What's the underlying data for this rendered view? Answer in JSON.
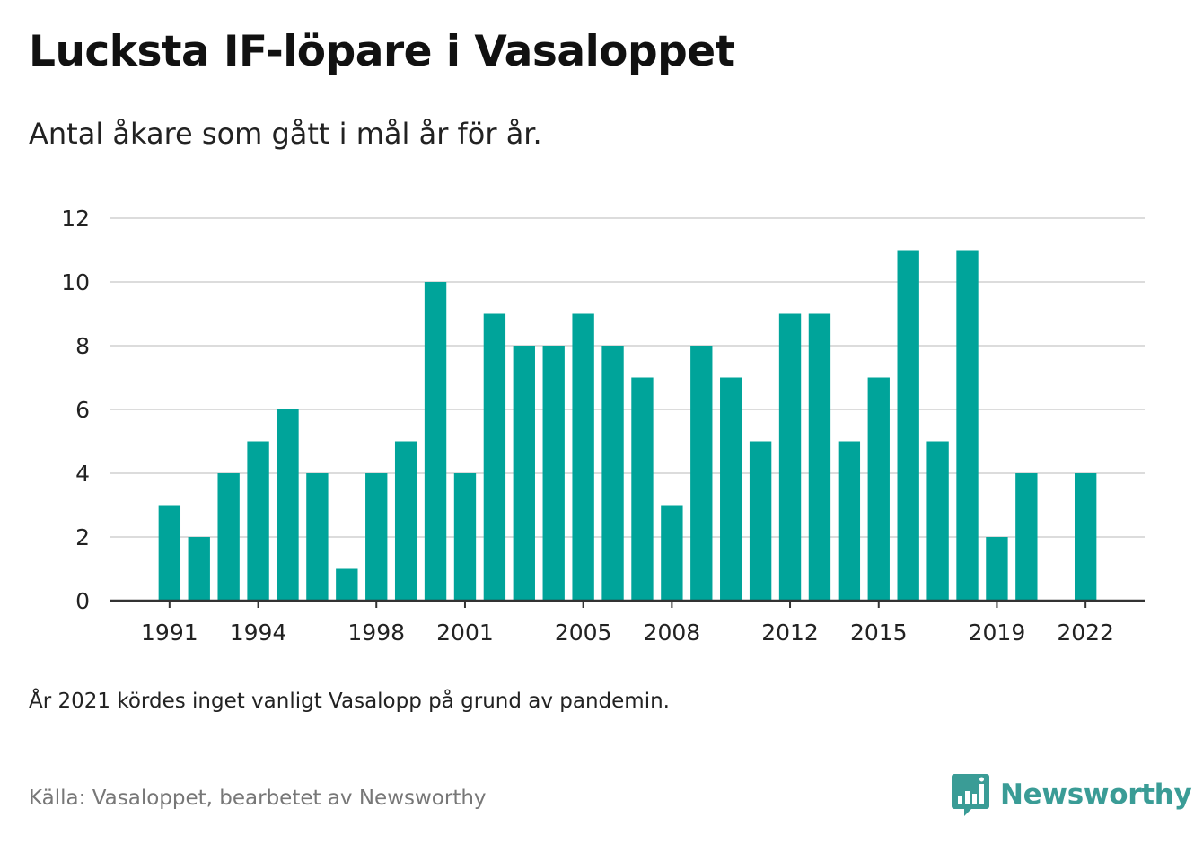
{
  "title": "Lucksta IF-löpare i Vasaloppet",
  "subtitle": "Antal åkare som gått i mål år för år.",
  "note": "År 2021 kördes inget vanligt Vasalopp på grund av pandemin.",
  "source": "Källa: Vasaloppet, bearbetet av Newsworthy",
  "brand": "Newsworthy",
  "colors": {
    "bar": "#00a49a",
    "grid": "#dcdcdc",
    "axis": "#333333",
    "brand": "#3a9c96"
  },
  "chart_data": {
    "type": "bar",
    "title": "Lucksta IF-löpare i Vasaloppet",
    "subtitle": "Antal åkare som gått i mål år för år.",
    "xlabel": "",
    "ylabel": "",
    "ylim": [
      0,
      12
    ],
    "yticks": [
      0,
      2,
      4,
      6,
      8,
      10,
      12
    ],
    "xticks": [
      1991,
      1994,
      1998,
      2001,
      2005,
      2008,
      2012,
      2015,
      2019,
      2022
    ],
    "xrange": [
      1989,
      2024
    ],
    "grid": true,
    "x": [
      1991,
      1992,
      1993,
      1994,
      1995,
      1996,
      1997,
      1998,
      1999,
      2000,
      2001,
      2002,
      2003,
      2004,
      2005,
      2006,
      2007,
      2008,
      2009,
      2010,
      2011,
      2012,
      2013,
      2014,
      2015,
      2016,
      2017,
      2018,
      2019,
      2020,
      2021,
      2022
    ],
    "values": [
      3,
      2,
      4,
      5,
      6,
      4,
      1,
      4,
      5,
      10,
      4,
      9,
      8,
      8,
      9,
      8,
      7,
      3,
      8,
      7,
      5,
      9,
      9,
      5,
      7,
      11,
      5,
      11,
      2,
      4,
      0,
      4
    ]
  }
}
